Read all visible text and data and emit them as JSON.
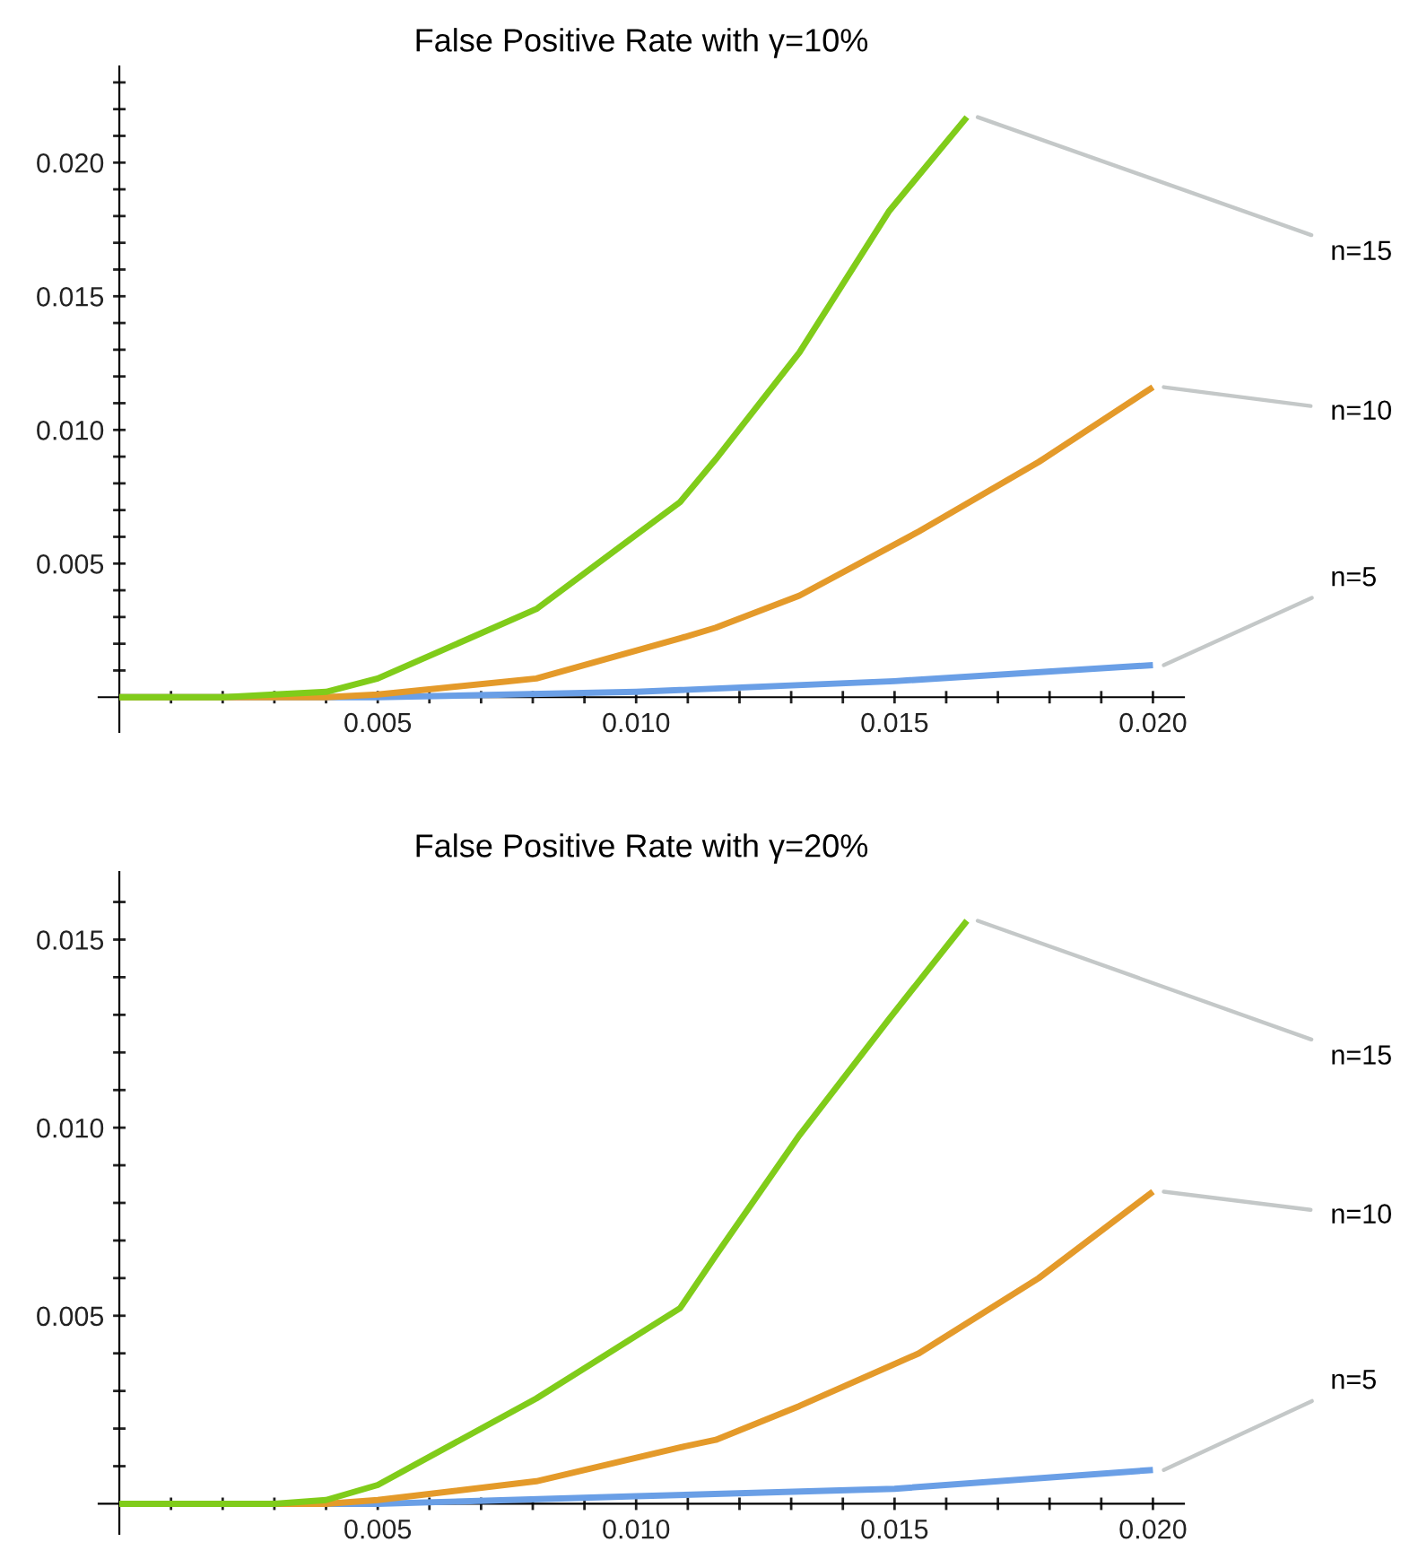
{
  "chart_data": [
    {
      "type": "line",
      "title": "False Positive Rate with γ=10%",
      "xlim": [
        -0.0004,
        0.0206
      ],
      "ylim": [
        -0.0013,
        0.0236
      ],
      "xticks": [
        {
          "value": 0.001,
          "label": null
        },
        {
          "value": 0.002,
          "label": null
        },
        {
          "value": 0.003,
          "label": null
        },
        {
          "value": 0.004,
          "label": null
        },
        {
          "value": 0.005,
          "label": "0.005"
        },
        {
          "value": 0.006,
          "label": null
        },
        {
          "value": 0.007,
          "label": null
        },
        {
          "value": 0.008,
          "label": null
        },
        {
          "value": 0.009,
          "label": null
        },
        {
          "value": 0.01,
          "label": "0.010"
        },
        {
          "value": 0.011,
          "label": null
        },
        {
          "value": 0.012,
          "label": null
        },
        {
          "value": 0.013,
          "label": null
        },
        {
          "value": 0.014,
          "label": null
        },
        {
          "value": 0.015,
          "label": "0.015"
        },
        {
          "value": 0.016,
          "label": null
        },
        {
          "value": 0.017,
          "label": null
        },
        {
          "value": 0.018,
          "label": null
        },
        {
          "value": 0.019,
          "label": null
        },
        {
          "value": 0.02,
          "label": "0.020"
        }
      ],
      "yticks": [
        {
          "value": 0.001,
          "label": null
        },
        {
          "value": 0.002,
          "label": null
        },
        {
          "value": 0.003,
          "label": null
        },
        {
          "value": 0.004,
          "label": null
        },
        {
          "value": 0.005,
          "label": "0.005"
        },
        {
          "value": 0.006,
          "label": null
        },
        {
          "value": 0.007,
          "label": null
        },
        {
          "value": 0.008,
          "label": null
        },
        {
          "value": 0.009,
          "label": null
        },
        {
          "value": 0.01,
          "label": "0.010"
        },
        {
          "value": 0.011,
          "label": null
        },
        {
          "value": 0.012,
          "label": null
        },
        {
          "value": 0.013,
          "label": null
        },
        {
          "value": 0.014,
          "label": null
        },
        {
          "value": 0.015,
          "label": "0.015"
        },
        {
          "value": 0.016,
          "label": null
        },
        {
          "value": 0.017,
          "label": null
        },
        {
          "value": 0.018,
          "label": null
        },
        {
          "value": 0.019,
          "label": null
        },
        {
          "value": 0.02,
          "label": "0.020"
        },
        {
          "value": 0.021,
          "label": null
        },
        {
          "value": 0.022,
          "label": null
        },
        {
          "value": 0.023,
          "label": null
        }
      ],
      "series": [
        {
          "name": "n=15",
          "color": "#80cc1a",
          "x": [
            0,
            0.001,
            0.002,
            0.003,
            0.004,
            0.005,
            0.00807,
            0.01085,
            0.01154,
            0.01316,
            0.0149,
            0.0164
          ],
          "values": [
            0,
            0,
            0,
            0.0001,
            0.0002,
            0.0007,
            0.0033,
            0.0073,
            0.0089,
            0.0129,
            0.0182,
            0.0217
          ]
        },
        {
          "name": "n=10",
          "color": "#e49a2a",
          "x": [
            0,
            0.002,
            0.004,
            0.005,
            0.00807,
            0.01085,
            0.01154,
            0.01316,
            0.01547,
            0.01779,
            0.02
          ],
          "values": [
            0,
            0,
            0,
            0.0001,
            0.0007,
            0.0022,
            0.0026,
            0.0038,
            0.0062,
            0.0088,
            0.0116
          ]
        },
        {
          "name": "n=5",
          "color": "#6a9fe6",
          "x": [
            0,
            0.005,
            0.01,
            0.015,
            0.02
          ],
          "values": [
            0,
            0,
            0.0002,
            0.0006,
            0.0012
          ]
        }
      ]
    },
    {
      "type": "line",
      "title": "False Positive Rate with γ=20%",
      "xlim": [
        -0.0004,
        0.0206
      ],
      "ylim": [
        -0.0008,
        0.0168
      ],
      "xticks": [
        {
          "value": 0.001,
          "label": null
        },
        {
          "value": 0.002,
          "label": null
        },
        {
          "value": 0.003,
          "label": null
        },
        {
          "value": 0.004,
          "label": null
        },
        {
          "value": 0.005,
          "label": "0.005"
        },
        {
          "value": 0.006,
          "label": null
        },
        {
          "value": 0.007,
          "label": null
        },
        {
          "value": 0.008,
          "label": null
        },
        {
          "value": 0.009,
          "label": null
        },
        {
          "value": 0.01,
          "label": "0.010"
        },
        {
          "value": 0.011,
          "label": null
        },
        {
          "value": 0.012,
          "label": null
        },
        {
          "value": 0.013,
          "label": null
        },
        {
          "value": 0.014,
          "label": null
        },
        {
          "value": 0.015,
          "label": "0.015"
        },
        {
          "value": 0.016,
          "label": null
        },
        {
          "value": 0.017,
          "label": null
        },
        {
          "value": 0.018,
          "label": null
        },
        {
          "value": 0.019,
          "label": null
        },
        {
          "value": 0.02,
          "label": "0.020"
        }
      ],
      "yticks": [
        {
          "value": 0.001,
          "label": null
        },
        {
          "value": 0.002,
          "label": null
        },
        {
          "value": 0.003,
          "label": null
        },
        {
          "value": 0.004,
          "label": null
        },
        {
          "value": 0.005,
          "label": "0.005"
        },
        {
          "value": 0.006,
          "label": null
        },
        {
          "value": 0.007,
          "label": null
        },
        {
          "value": 0.008,
          "label": null
        },
        {
          "value": 0.009,
          "label": null
        },
        {
          "value": 0.01,
          "label": "0.010"
        },
        {
          "value": 0.011,
          "label": null
        },
        {
          "value": 0.012,
          "label": null
        },
        {
          "value": 0.013,
          "label": null
        },
        {
          "value": 0.014,
          "label": null
        },
        {
          "value": 0.015,
          "label": "0.015"
        },
        {
          "value": 0.016,
          "label": null
        }
      ],
      "series": [
        {
          "name": "n=15",
          "color": "#80cc1a",
          "x": [
            0,
            0.002,
            0.003,
            0.004,
            0.005,
            0.00807,
            0.01085,
            0.01154,
            0.01316,
            0.0149,
            0.0164
          ],
          "values": [
            0,
            0,
            0,
            0.0001,
            0.0005,
            0.0028,
            0.0052,
            0.0066,
            0.0098,
            0.0129,
            0.0155
          ]
        },
        {
          "name": "n=10",
          "color": "#e49a2a",
          "x": [
            0,
            0.002,
            0.004,
            0.005,
            0.00807,
            0.01085,
            0.01154,
            0.01316,
            0.01547,
            0.01779,
            0.02
          ],
          "values": [
            0,
            0,
            0,
            0.0001,
            0.0006,
            0.0015,
            0.0017,
            0.0026,
            0.004,
            0.006,
            0.0083
          ]
        },
        {
          "name": "n=5",
          "color": "#6a9fe6",
          "x": [
            0,
            0.005,
            0.01,
            0.015,
            0.02
          ],
          "values": [
            0,
            0,
            0.0002,
            0.0004,
            0.0009
          ]
        }
      ]
    }
  ]
}
